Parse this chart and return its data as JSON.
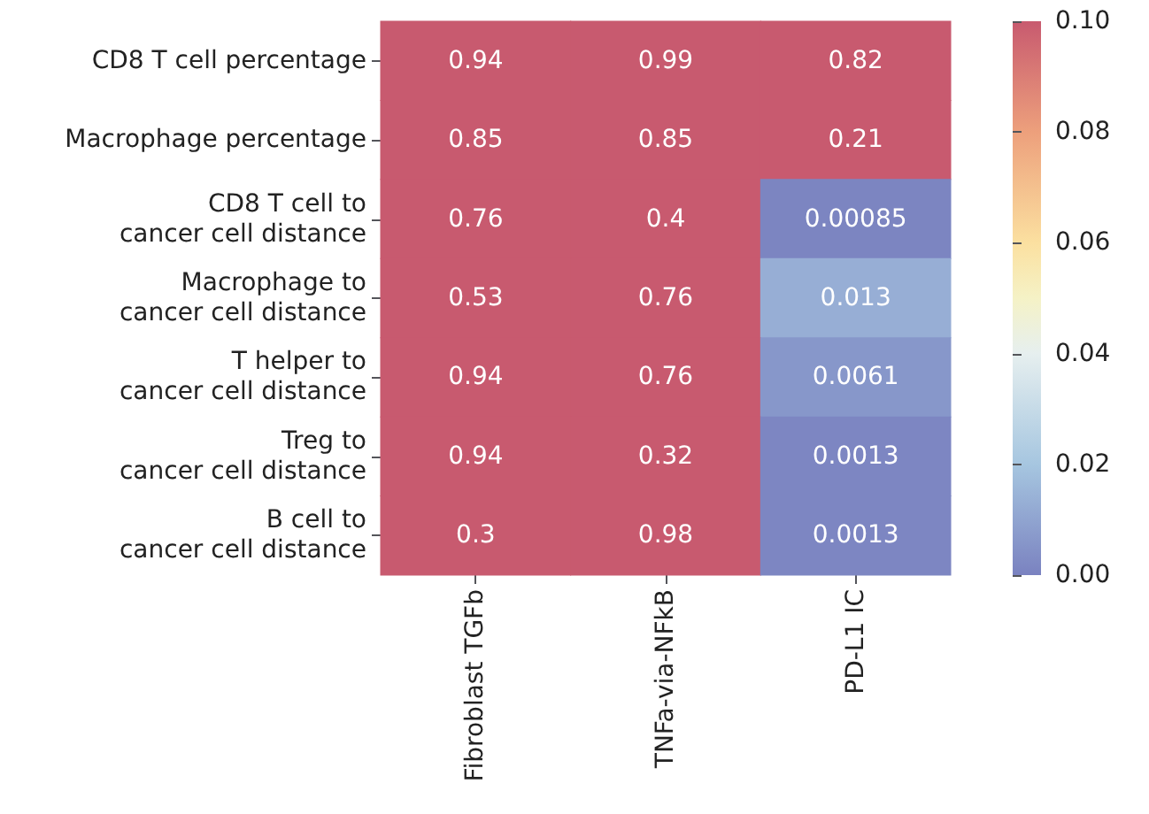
{
  "chart_data": {
    "type": "heatmap",
    "categories": [
      "Fibroblast TGFb",
      "TNFa-via-NFkB",
      "PD-L1 IC"
    ],
    "y_categories": [
      "CD8 T cell percentage",
      "Macrophage percentage",
      "CD8 T cell to\ncancer cell distance",
      "Macrophage to\ncancer cell distance",
      "T helper to\ncancer cell distance",
      "Treg to\ncancer cell distance",
      "B cell to\ncancer cell distance"
    ],
    "cells": [
      [
        0.94,
        0.99,
        0.82
      ],
      [
        0.85,
        0.85,
        0.21
      ],
      [
        0.76,
        0.4,
        0.00085
      ],
      [
        0.53,
        0.76,
        0.013
      ],
      [
        0.94,
        0.76,
        0.0061
      ],
      [
        0.94,
        0.32,
        0.0013
      ],
      [
        0.3,
        0.98,
        0.0013
      ]
    ],
    "clim": [
      0,
      0.1
    ],
    "cticks": [
      {
        "value": 0,
        "label": "0.00"
      },
      {
        "value": 0.02,
        "label": "0.02"
      },
      {
        "value": 0.04,
        "label": "0.04"
      },
      {
        "value": 0.06,
        "label": "0.06"
      },
      {
        "value": 0.08,
        "label": "0.08"
      },
      {
        "value": 0.1,
        "label": "0.10"
      }
    ],
    "data_labels": true
  }
}
